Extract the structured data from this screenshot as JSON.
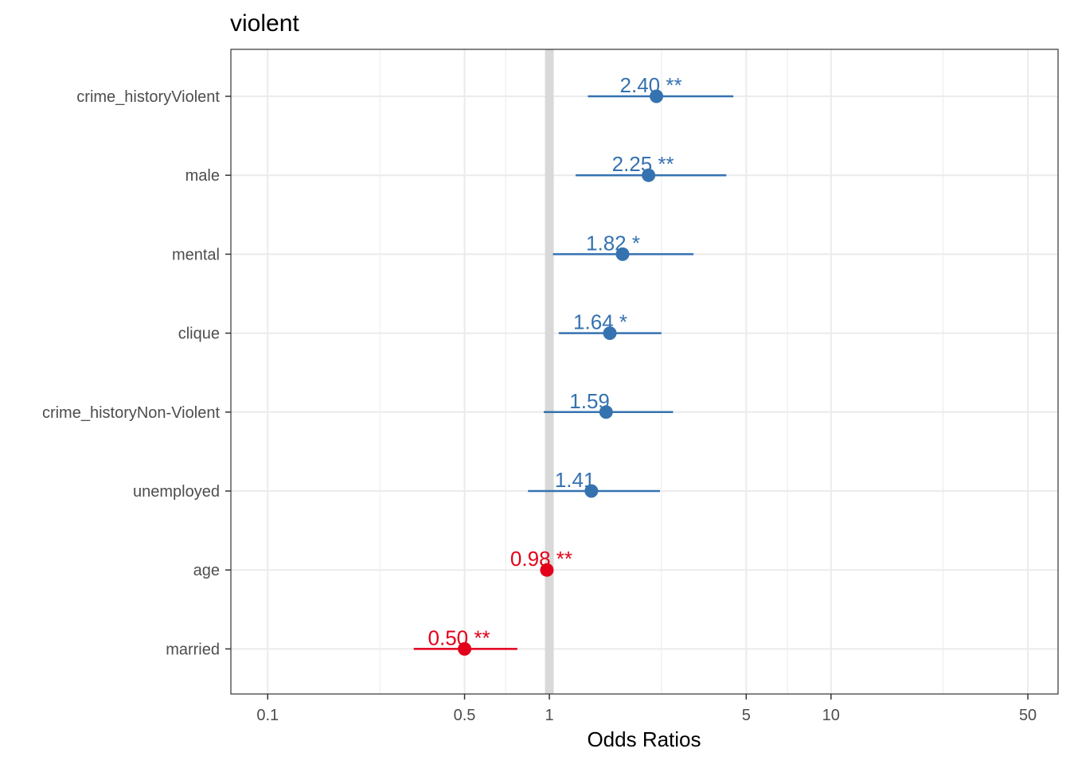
{
  "chart_data": {
    "type": "forest",
    "title": "violent",
    "xlabel": "Odds Ratios",
    "ylabel": "",
    "x_scale": "log",
    "xlim": [
      0.074,
      64
    ],
    "x_ticks": [
      {
        "value": 0.1,
        "label": "0.1"
      },
      {
        "value": 0.5,
        "label": "0.5"
      },
      {
        "value": 1,
        "label": "1"
      },
      {
        "value": 5,
        "label": "5"
      },
      {
        "value": 10,
        "label": "10"
      },
      {
        "value": 50,
        "label": "50"
      }
    ],
    "x_minor_gridlines": [
      0.25,
      0.7,
      2.5,
      7,
      25
    ],
    "reference_line": 1,
    "grid": true,
    "colors": {
      "positive": "#3572b0",
      "negative": "#e2001a",
      "reference": "#d9d9d9",
      "grid": "#ebebeb",
      "border": "#333333"
    },
    "terms": [
      {
        "term": "crime_historyViolent",
        "estimate": 2.4,
        "ci_low": 1.37,
        "ci_high": 4.5,
        "label": "2.40 **",
        "direction": "positive"
      },
      {
        "term": "male",
        "estimate": 2.25,
        "ci_low": 1.24,
        "ci_high": 4.25,
        "label": "2.25 **",
        "direction": "positive"
      },
      {
        "term": "mental",
        "estimate": 1.82,
        "ci_low": 1.03,
        "ci_high": 3.25,
        "label": "1.82 *",
        "direction": "positive"
      },
      {
        "term": "clique",
        "estimate": 1.64,
        "ci_low": 1.08,
        "ci_high": 2.5,
        "label": "1.64 *",
        "direction": "positive"
      },
      {
        "term": "crime_historyNon-Violent",
        "estimate": 1.59,
        "ci_low": 0.955,
        "ci_high": 2.75,
        "label": "1.59",
        "direction": "positive"
      },
      {
        "term": "unemployed",
        "estimate": 1.41,
        "ci_low": 0.84,
        "ci_high": 2.47,
        "label": "1.41",
        "direction": "positive"
      },
      {
        "term": "age",
        "estimate": 0.98,
        "ci_low": 0.965,
        "ci_high": 0.995,
        "label": "0.98 **",
        "direction": "negative"
      },
      {
        "term": "married",
        "estimate": 0.5,
        "ci_low": 0.33,
        "ci_high": 0.77,
        "label": "0.50 **",
        "direction": "negative"
      }
    ]
  }
}
